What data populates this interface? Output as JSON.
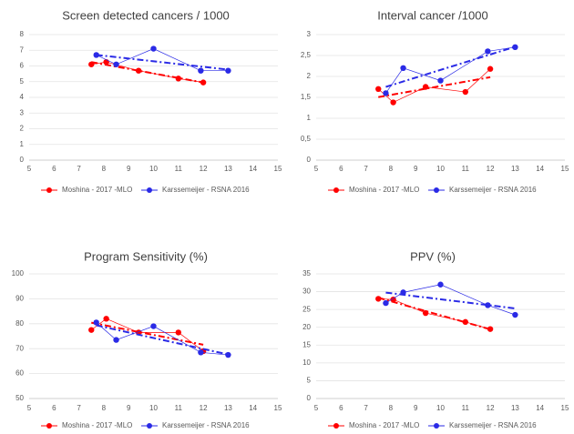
{
  "chart_data": [
    {
      "type": "line",
      "title": "Screen detected cancers / 1000",
      "xlim": [
        5,
        15
      ],
      "xticks": [
        5,
        6,
        7,
        8,
        9,
        10,
        11,
        12,
        13,
        14,
        15
      ],
      "ylim": [
        0,
        8
      ],
      "yticks": [
        0,
        1,
        2,
        3,
        4,
        5,
        6,
        7,
        8
      ],
      "grid": true,
      "trendline": true,
      "series": [
        {
          "name": "Moshina - 2017 -MLO",
          "color": "#ff0000",
          "x": [
            7.5,
            8.1,
            9.4,
            11,
            12
          ],
          "values": [
            6.1,
            6.25,
            5.7,
            5.2,
            4.95
          ]
        },
        {
          "name": "Karssemeijer - RSNA 2016",
          "color": "#2a2ae6",
          "x": [
            7.7,
            8.5,
            10,
            11.9,
            13
          ],
          "values": [
            6.7,
            6.1,
            7.1,
            5.7,
            5.7
          ]
        }
      ]
    },
    {
      "type": "line",
      "title": "Interval cancer /1000",
      "xlim": [
        5,
        15
      ],
      "xticks": [
        5,
        6,
        7,
        8,
        9,
        10,
        11,
        12,
        13,
        14,
        15
      ],
      "ylim": [
        0,
        3
      ],
      "yticks": [
        0,
        {
          "value": 0.5,
          "label": "0,5"
        },
        1,
        {
          "value": 1.5,
          "label": "1,5"
        },
        2,
        {
          "value": 2.5,
          "label": "2,5"
        },
        3
      ],
      "grid": true,
      "trendline": true,
      "series": [
        {
          "name": "Moshina - 2017 -MLO",
          "color": "#ff0000",
          "x": [
            7.5,
            8.1,
            9.4,
            11,
            12
          ],
          "values": [
            1.7,
            1.38,
            1.75,
            1.63,
            2.18
          ]
        },
        {
          "name": "Karssemeijer - RSNA 2016",
          "color": "#2a2ae6",
          "x": [
            7.8,
            8.5,
            10,
            11.9,
            13
          ],
          "values": [
            1.6,
            2.2,
            1.9,
            2.6,
            2.7
          ]
        }
      ]
    },
    {
      "type": "line",
      "title": "Program Sensitivity (%)",
      "xlim": [
        5,
        15
      ],
      "xticks": [
        5,
        6,
        7,
        8,
        9,
        10,
        11,
        12,
        13,
        14,
        15
      ],
      "ylim": [
        50,
        100
      ],
      "yticks": [
        50,
        60,
        70,
        80,
        90,
        100
      ],
      "grid": true,
      "trendline": true,
      "series": [
        {
          "name": "Moshina - 2017 -MLO",
          "color": "#ff0000",
          "x": [
            7.5,
            8.1,
            9.4,
            11,
            12
          ],
          "values": [
            77.5,
            82,
            76.5,
            76.5,
            69
          ]
        },
        {
          "name": "Karssemeijer - RSNA 2016",
          "color": "#2a2ae6",
          "x": [
            7.7,
            8.5,
            10,
            11.9,
            13
          ],
          "values": [
            80.5,
            73.5,
            79,
            68.5,
            67.5
          ]
        }
      ]
    },
    {
      "type": "line",
      "title": "PPV (%)",
      "xlim": [
        5,
        15
      ],
      "xticks": [
        5,
        6,
        7,
        8,
        9,
        10,
        11,
        12,
        13,
        14,
        15
      ],
      "ylim": [
        0,
        35
      ],
      "yticks": [
        0,
        5,
        10,
        15,
        20,
        25,
        30,
        35
      ],
      "grid": true,
      "trendline": true,
      "series": [
        {
          "name": "Moshina - 2017 -MLO",
          "color": "#ff0000",
          "x": [
            7.5,
            8.1,
            9.4,
            11,
            12
          ],
          "values": [
            28,
            27.8,
            24,
            21.5,
            19.5
          ]
        },
        {
          "name": "Karssemeijer - RSNA 2016",
          "color": "#2a2ae6",
          "x": [
            7.8,
            8.5,
            10,
            11.9,
            13
          ],
          "values": [
            26.8,
            29.8,
            32,
            26.2,
            23.5
          ]
        }
      ]
    }
  ]
}
